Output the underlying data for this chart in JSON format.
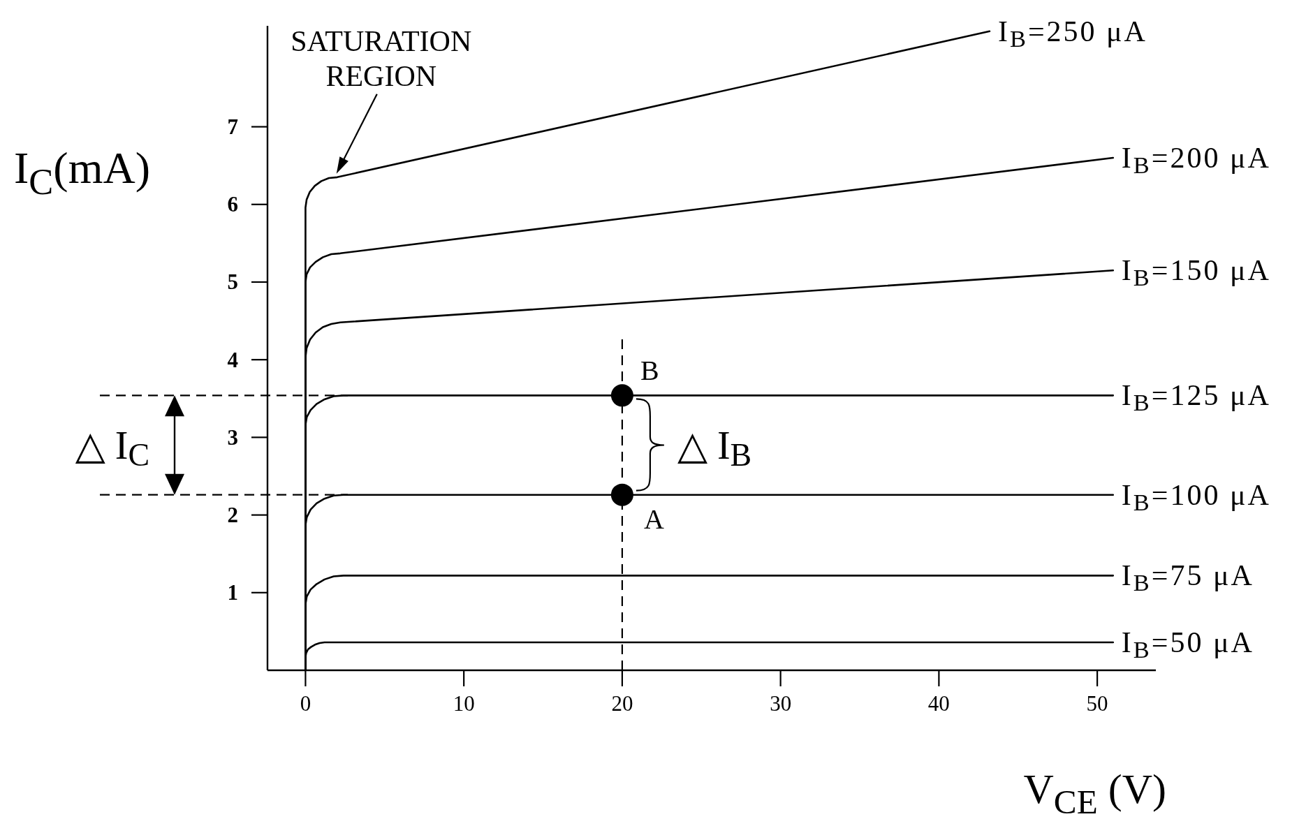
{
  "chart_data": {
    "type": "line",
    "xlabel": "V$_{CE}$ (V)",
    "ylabel": "I$_{C}$(mA)",
    "xlim": [
      -2.4,
      53.7
    ],
    "ylim": [
      0,
      8.3
    ],
    "xticks": [
      0,
      10,
      20,
      30,
      40,
      50
    ],
    "yticks": [
      1,
      2,
      3,
      4,
      5,
      6,
      7
    ],
    "series": [
      {
        "name": "I$_{B}$=250 μA",
        "color": "#000000",
        "x": [
          0,
          0,
          0.07,
          0.27,
          0.59,
          1,
          1.48,
          2,
          43.2
        ],
        "values": [
          0,
          5.96,
          6.06,
          6.16,
          6.24,
          6.3,
          6.34,
          6.35,
          8.23
        ]
      },
      {
        "name": "I$_{B}$=200 μA",
        "color": "#000000",
        "x": [
          0,
          0,
          0.07,
          0.29,
          0.64,
          1.1,
          1.63,
          2.2,
          51
        ],
        "values": [
          0,
          5,
          5.1,
          5.19,
          5.26,
          5.32,
          5.36,
          5.37,
          6.6
        ]
      },
      {
        "name": "I$_{B}$=150 μA",
        "color": "#000000",
        "x": [
          0,
          0,
          0.07,
          0.29,
          0.64,
          1.1,
          1.63,
          2.2,
          51
        ],
        "values": [
          0,
          4.03,
          4.15,
          4.26,
          4.35,
          4.42,
          4.46,
          4.48,
          5.15
        ]
      },
      {
        "name": "I$_{B}$=125 μA",
        "color": "#000000",
        "x": [
          0,
          0,
          0.08,
          0.32,
          0.7,
          1.2,
          1.78,
          2.4,
          51
        ],
        "values": [
          0,
          3.16,
          3.26,
          3.35,
          3.43,
          3.49,
          3.53,
          3.54,
          3.54
        ]
      },
      {
        "name": "I$_{B}$=100 μA",
        "color": "#000000",
        "x": [
          0,
          0,
          0.08,
          0.32,
          0.7,
          1.2,
          1.78,
          2.4,
          51
        ],
        "values": [
          0,
          1.87,
          1.97,
          2.07,
          2.15,
          2.21,
          2.25,
          2.26,
          2.26
        ]
      },
      {
        "name": "I$_{B}$=75 μA",
        "color": "#000000",
        "x": [
          0,
          0,
          0.08,
          0.32,
          0.7,
          1.2,
          1.78,
          2.4,
          51
        ],
        "values": [
          0,
          0.85,
          0.95,
          1.04,
          1.11,
          1.17,
          1.21,
          1.22,
          1.22
        ]
      },
      {
        "name": "I$_{B}$=50 μA",
        "color": "#000000",
        "x": [
          0,
          0,
          0.04,
          0.16,
          0.35,
          0.6,
          0.89,
          1.2,
          51
        ],
        "values": [
          0,
          0.17,
          0.22,
          0.27,
          0.3,
          0.33,
          0.35,
          0.36,
          0.36
        ]
      },
      {
        "type": "scatter",
        "name": "B",
        "color": "#000000",
        "marker": "circle",
        "x": [
          20
        ],
        "values": [
          3.54
        ]
      },
      {
        "type": "scatter",
        "name": "A",
        "color": "#000000",
        "marker": "circle",
        "x": [
          20
        ],
        "values": [
          2.26
        ]
      }
    ],
    "ref_lines": [
      {
        "axis": "y",
        "value": 3.54,
        "color": "#000000",
        "line_style": "dashed"
      },
      {
        "axis": "y",
        "value": 2.26,
        "color": "#000000",
        "line_style": "dashed"
      },
      {
        "axis": "x",
        "value": 20,
        "color": "#000000",
        "line_style": "dashed"
      }
    ],
    "annotations": [
      "SATURATION REGION",
      "△ I$_{B}$",
      "△ I$_{C}$"
    ]
  }
}
